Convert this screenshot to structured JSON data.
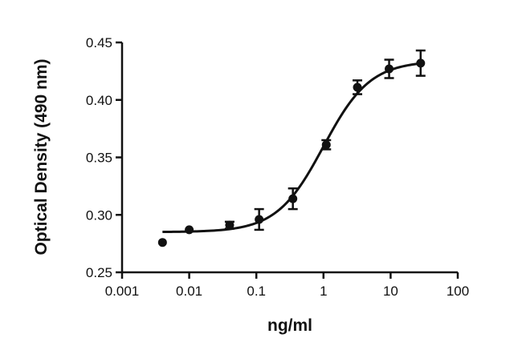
{
  "chart_data": {
    "type": "scatter",
    "title": "",
    "xlabel": "ng/ml",
    "ylabel": "Optical Density (490 nm)",
    "x_scale": "log",
    "xlim": [
      0.001,
      100
    ],
    "ylim": [
      0.25,
      0.45
    ],
    "x_ticks": [
      "0.001",
      "0.01",
      "0.1",
      "1",
      "10",
      "100"
    ],
    "y_ticks": [
      "0.25",
      "0.30",
      "0.35",
      "0.40",
      "0.45"
    ],
    "grid": false,
    "legend": "none",
    "series": [
      {
        "points": [
          {
            "x": 0.004,
            "y": 0.276,
            "err": 0.0
          },
          {
            "x": 0.01,
            "y": 0.287,
            "err": 0.0
          },
          {
            "x": 0.04,
            "y": 0.291,
            "err": 0.003
          },
          {
            "x": 0.11,
            "y": 0.296,
            "err": 0.009
          },
          {
            "x": 0.35,
            "y": 0.314,
            "err": 0.009
          },
          {
            "x": 1.1,
            "y": 0.361,
            "err": 0.004
          },
          {
            "x": 3.2,
            "y": 0.411,
            "err": 0.006
          },
          {
            "x": 9.5,
            "y": 0.427,
            "err": 0.008
          },
          {
            "x": 28,
            "y": 0.432,
            "err": 0.011
          }
        ],
        "fit": {
          "model": "4PL",
          "bottom": 0.285,
          "top": 0.434,
          "ec50": 1.0,
          "hill": 1.25
        }
      }
    ],
    "color": "#111111"
  }
}
